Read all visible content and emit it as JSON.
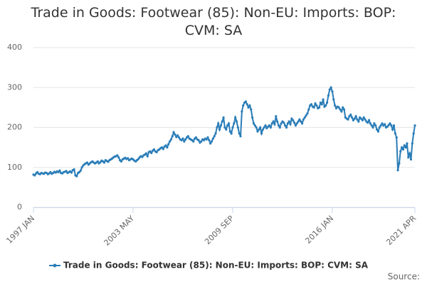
{
  "chart_data": {
    "type": "line",
    "title": "Trade in Goods: Footwear (85): Non-EU: Imports: BOP: CVM: SA",
    "source": "Source:",
    "categories": [
      "1997 JAN",
      null,
      null,
      null,
      null,
      null,
      null,
      null,
      null,
      null,
      null,
      null,
      null,
      null,
      null,
      null,
      null,
      null,
      null,
      null,
      null,
      null,
      null,
      null,
      null,
      null,
      null,
      null,
      null,
      null,
      null,
      null,
      null,
      null,
      null,
      null,
      null,
      null,
      null,
      null,
      null,
      null,
      null,
      null,
      null,
      null,
      null,
      null,
      null,
      null,
      null,
      null,
      null,
      null,
      null,
      null,
      null,
      null,
      null,
      null,
      null,
      null,
      null,
      null,
      null,
      null,
      null,
      null,
      null,
      null,
      null,
      null,
      null,
      null,
      null,
      null,
      "2003 MAY",
      null,
      null,
      null,
      null,
      null,
      null,
      null,
      null,
      null,
      null,
      null,
      null,
      null,
      null,
      null,
      null,
      null,
      null,
      null,
      null,
      null,
      null,
      null,
      null,
      null,
      null,
      null,
      null,
      null,
      null,
      null,
      null,
      null,
      null,
      null,
      null,
      null,
      null,
      null,
      null,
      null,
      null,
      null,
      null,
      null,
      null,
      null,
      null,
      null,
      null,
      null,
      null,
      null,
      null,
      null,
      null,
      null,
      null,
      null,
      null,
      null,
      null,
      null,
      null,
      null,
      null,
      null,
      null,
      null,
      null,
      null,
      null,
      null,
      null,
      null,
      "2009 SEP",
      null,
      null,
      null,
      null,
      null,
      null,
      null,
      null,
      null,
      null,
      null,
      null,
      null,
      null,
      null,
      null,
      null,
      null,
      null,
      null,
      null,
      null,
      null,
      null,
      null,
      null,
      null,
      null,
      null,
      null,
      null,
      null,
      null,
      null,
      null,
      null,
      null,
      null,
      null,
      null,
      null,
      null,
      null,
      null,
      null,
      null,
      null,
      null,
      null,
      null,
      null,
      null,
      null,
      null,
      null,
      null,
      null,
      null,
      null,
      null,
      null,
      null,
      null,
      null,
      null,
      null,
      null,
      null,
      null,
      null,
      null,
      null,
      null,
      null,
      null,
      "2016 JAN",
      null,
      null,
      null,
      null,
      null,
      null,
      null,
      null,
      null,
      null,
      null,
      null,
      null,
      null,
      null,
      null,
      null,
      null,
      null,
      null,
      null,
      null,
      null,
      null,
      null,
      null,
      null,
      null,
      null,
      null,
      null,
      null,
      null,
      null,
      null,
      null,
      null,
      null,
      null,
      null,
      null,
      null,
      null,
      null,
      null,
      null,
      null,
      null,
      null,
      null,
      null,
      null,
      null,
      null,
      null,
      null,
      null,
      null,
      null,
      null,
      null,
      null,
      "2021 APR"
    ],
    "series": [
      {
        "name": "Trade in Goods: Footwear (85): Non-EU: Imports: BOP: CVM: SA",
        "color": "#2a7db8",
        "values": [
          82,
          80,
          85,
          88,
          84,
          83,
          86,
          85,
          84,
          87,
          86,
          83,
          85,
          88,
          84,
          86,
          89,
          87,
          90,
          88,
          92,
          86,
          85,
          88,
          89,
          91,
          86,
          88,
          90,
          87,
          93,
          95,
          80,
          78,
          86,
          88,
          92,
          100,
          105,
          108,
          110,
          112,
          107,
          110,
          113,
          115,
          112,
          110,
          112,
          115,
          110,
          113,
          117,
          115,
          112,
          118,
          116,
          114,
          118,
          120,
          122,
          125,
          127,
          128,
          130,
          125,
          118,
          115,
          120,
          122,
          124,
          121,
          123,
          118,
          120,
          122,
          120,
          117,
          115,
          118,
          121,
          125,
          128,
          126,
          130,
          132,
          135,
          128,
          138,
          140,
          136,
          142,
          145,
          140,
          138,
          143,
          145,
          148,
          150,
          146,
          152,
          155,
          150,
          158,
          165,
          170,
          178,
          188,
          182,
          176,
          180,
          175,
          170,
          168,
          172,
          165,
          170,
          175,
          178,
          172,
          170,
          168,
          165,
          172,
          175,
          170,
          168,
          162,
          165,
          170,
          168,
          172,
          170,
          175,
          168,
          160,
          165,
          172,
          178,
          185,
          200,
          210,
          195,
          205,
          215,
          225,
          200,
          195,
          205,
          210,
          190,
          185,
          200,
          210,
          225,
          215,
          200,
          185,
          178,
          240,
          255,
          262,
          265,
          258,
          250,
          255,
          245,
          225,
          210,
          205,
          200,
          190,
          195,
          200,
          185,
          195,
          200,
          205,
          198,
          202,
          205,
          200,
          210,
          215,
          208,
          228,
          215,
          205,
          200,
          210,
          215,
          212,
          205,
          200,
          210,
          215,
          208,
          222,
          218,
          212,
          205,
          210,
          215,
          220,
          215,
          210,
          220,
          225,
          230,
          235,
          245,
          255,
          258,
          252,
          250,
          260,
          255,
          248,
          250,
          262,
          258,
          270,
          252,
          255,
          262,
          280,
          295,
          300,
          290,
          270,
          255,
          248,
          252,
          250,
          245,
          240,
          250,
          245,
          225,
          222,
          220,
          228,
          232,
          225,
          218,
          222,
          228,
          220,
          215,
          225,
          222,
          218,
          225,
          220,
          215,
          212,
          218,
          210,
          205,
          200,
          210,
          205,
          195,
          190,
          200,
          205,
          210,
          205,
          208,
          200,
          202,
          206,
          210,
          205,
          195,
          205,
          185,
          175,
          93,
          110,
          140,
          150,
          145,
          155,
          150,
          160,
          125,
          135,
          120,
          160,
          185,
          205
        ]
      }
    ],
    "ylim": [
      0,
      400
    ],
    "yticks": [
      0,
      100,
      200,
      300,
      400
    ],
    "grid": true,
    "legend": "bottom"
  }
}
